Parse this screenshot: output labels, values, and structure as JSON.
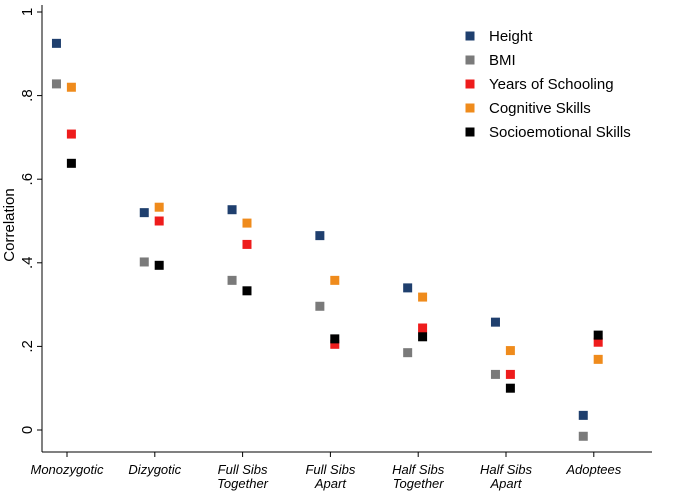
{
  "chart_data": {
    "type": "scatter",
    "title": "",
    "xlabel": "",
    "ylabel": "Correlation",
    "ylim": [
      -0.04,
      1.02
    ],
    "yticks": [
      0,
      0.2,
      0.4,
      0.6,
      0.8,
      1
    ],
    "ytick_labels": [
      "0",
      ".2",
      ".4",
      ".6",
      ".8",
      "1"
    ],
    "categories": [
      {
        "name": "Monozygotic",
        "lines": [
          "Monozygotic"
        ]
      },
      {
        "name": "Dizygotic",
        "lines": [
          "Dizygotic"
        ]
      },
      {
        "name": "Full Sibs Together",
        "lines": [
          "Full Sibs",
          "Together"
        ]
      },
      {
        "name": "Full Sibs Apart",
        "lines": [
          "Full Sibs",
          "Apart"
        ]
      },
      {
        "name": "Half Sibs Together",
        "lines": [
          "Half Sibs",
          "Together"
        ]
      },
      {
        "name": "Half Sibs Apart",
        "lines": [
          "Half Sibs",
          "Apart"
        ]
      },
      {
        "name": "Adoptees",
        "lines": [
          "Adoptees"
        ]
      }
    ],
    "legend_position": "top-right",
    "series": [
      {
        "name": "Height",
        "color": "#1f3f6e",
        "offset": -0.12,
        "values": [
          0.925,
          0.52,
          0.527,
          0.465,
          0.34,
          0.258,
          0.035
        ]
      },
      {
        "name": "BMI",
        "color": "#7a7a7a",
        "offset": -0.12,
        "values": [
          0.828,
          0.402,
          0.358,
          0.296,
          0.185,
          0.133,
          -0.015
        ]
      },
      {
        "name": "Years of Schooling",
        "color": "#ee1c1c",
        "offset": 0.05,
        "values": [
          0.708,
          0.5,
          0.444,
          0.205,
          0.244,
          0.133,
          0.21
        ]
      },
      {
        "name": "Cognitive Skills",
        "color": "#ef8b1c",
        "offset": 0.05,
        "values": [
          0.82,
          0.533,
          0.495,
          0.358,
          0.318,
          0.19,
          0.169
        ]
      },
      {
        "name": "Socioemotional Skills",
        "color": "#000000",
        "offset": 0.05,
        "values": [
          0.638,
          0.394,
          0.333,
          0.218,
          0.223,
          0.1,
          0.227
        ]
      }
    ]
  }
}
